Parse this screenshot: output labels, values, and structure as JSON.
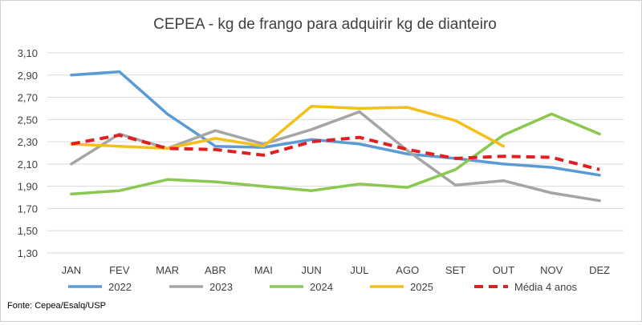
{
  "chart_data": {
    "type": "line",
    "title": "CEPEA - kg de frango para adquirir kg de dianteiro",
    "xlabel": "",
    "ylabel": "",
    "categories": [
      "JAN",
      "FEV",
      "MAR",
      "ABR",
      "MAI",
      "JUN",
      "JUL",
      "AGO",
      "SET",
      "OUT",
      "NOV",
      "DEZ"
    ],
    "ylim": [
      1.3,
      3.1
    ],
    "yticks": [
      "1,30",
      "1,50",
      "1,70",
      "1,90",
      "2,10",
      "2,30",
      "2,50",
      "2,70",
      "2,90",
      "3,10"
    ],
    "grid": true,
    "legend_position": "bottom",
    "series": [
      {
        "name": "2022",
        "color": "#5b9bd5",
        "dashed": false,
        "values": [
          2.9,
          2.93,
          2.55,
          2.26,
          2.25,
          2.32,
          2.28,
          2.19,
          2.15,
          2.1,
          2.07,
          2.0
        ]
      },
      {
        "name": "2023",
        "color": "#a5a5a5",
        "dashed": false,
        "values": [
          2.1,
          2.37,
          2.24,
          2.4,
          2.28,
          2.41,
          2.57,
          2.22,
          1.91,
          1.95,
          1.84,
          1.77
        ]
      },
      {
        "name": "2024",
        "color": "#8bc850",
        "dashed": false,
        "values": [
          1.83,
          1.86,
          1.96,
          1.94,
          1.9,
          1.86,
          1.92,
          1.89,
          2.05,
          2.36,
          2.55,
          2.37
        ]
      },
      {
        "name": "2025",
        "color": "#f5bf1b",
        "dashed": false,
        "values": [
          2.28,
          2.26,
          2.24,
          2.33,
          2.26,
          2.62,
          2.6,
          2.61,
          2.49,
          2.26,
          null,
          null
        ]
      },
      {
        "name": "Média 4 anos",
        "color": "#e02020",
        "dashed": true,
        "values": [
          2.28,
          2.36,
          2.24,
          2.23,
          2.18,
          2.3,
          2.34,
          2.23,
          2.15,
          2.17,
          2.16,
          2.05
        ]
      }
    ],
    "source": "Fonte: Cepea/Esalq/USP"
  }
}
